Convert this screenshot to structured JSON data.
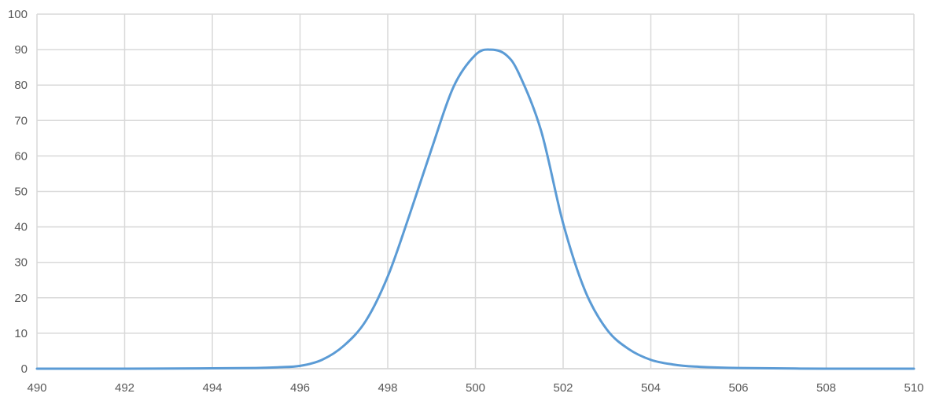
{
  "chart_data": {
    "type": "line",
    "title": "",
    "xlabel": "",
    "ylabel": "",
    "xlim": [
      490,
      510
    ],
    "ylim": [
      0,
      100
    ],
    "x_ticks": [
      490,
      492,
      494,
      496,
      498,
      500,
      502,
      504,
      506,
      508,
      510
    ],
    "y_ticks": [
      0,
      10,
      20,
      30,
      40,
      50,
      60,
      70,
      80,
      90,
      100
    ],
    "grid": true,
    "legend": "none",
    "colors": {
      "series": "#5b9bd5",
      "grid": "#d9d9d9",
      "tick_text": "#595959"
    },
    "series": [
      {
        "x": [
          490,
          492,
          494,
          495,
          495.5,
          496,
          496.5,
          497,
          497.5,
          498,
          498.5,
          499,
          499.5,
          500,
          500.35,
          500.7,
          501,
          501.5,
          502,
          502.5,
          503,
          503.5,
          504,
          504.5,
          505,
          506,
          508,
          510
        ],
        "values": [
          0,
          0,
          0.1,
          0.2,
          0.4,
          0.8,
          2.5,
          6.5,
          13.5,
          26,
          43.5,
          62,
          79.5,
          88.5,
          90,
          88.5,
          83,
          67,
          41,
          22,
          11,
          5.5,
          2.5,
          1.2,
          0.6,
          0.2,
          0,
          0
        ]
      }
    ]
  }
}
